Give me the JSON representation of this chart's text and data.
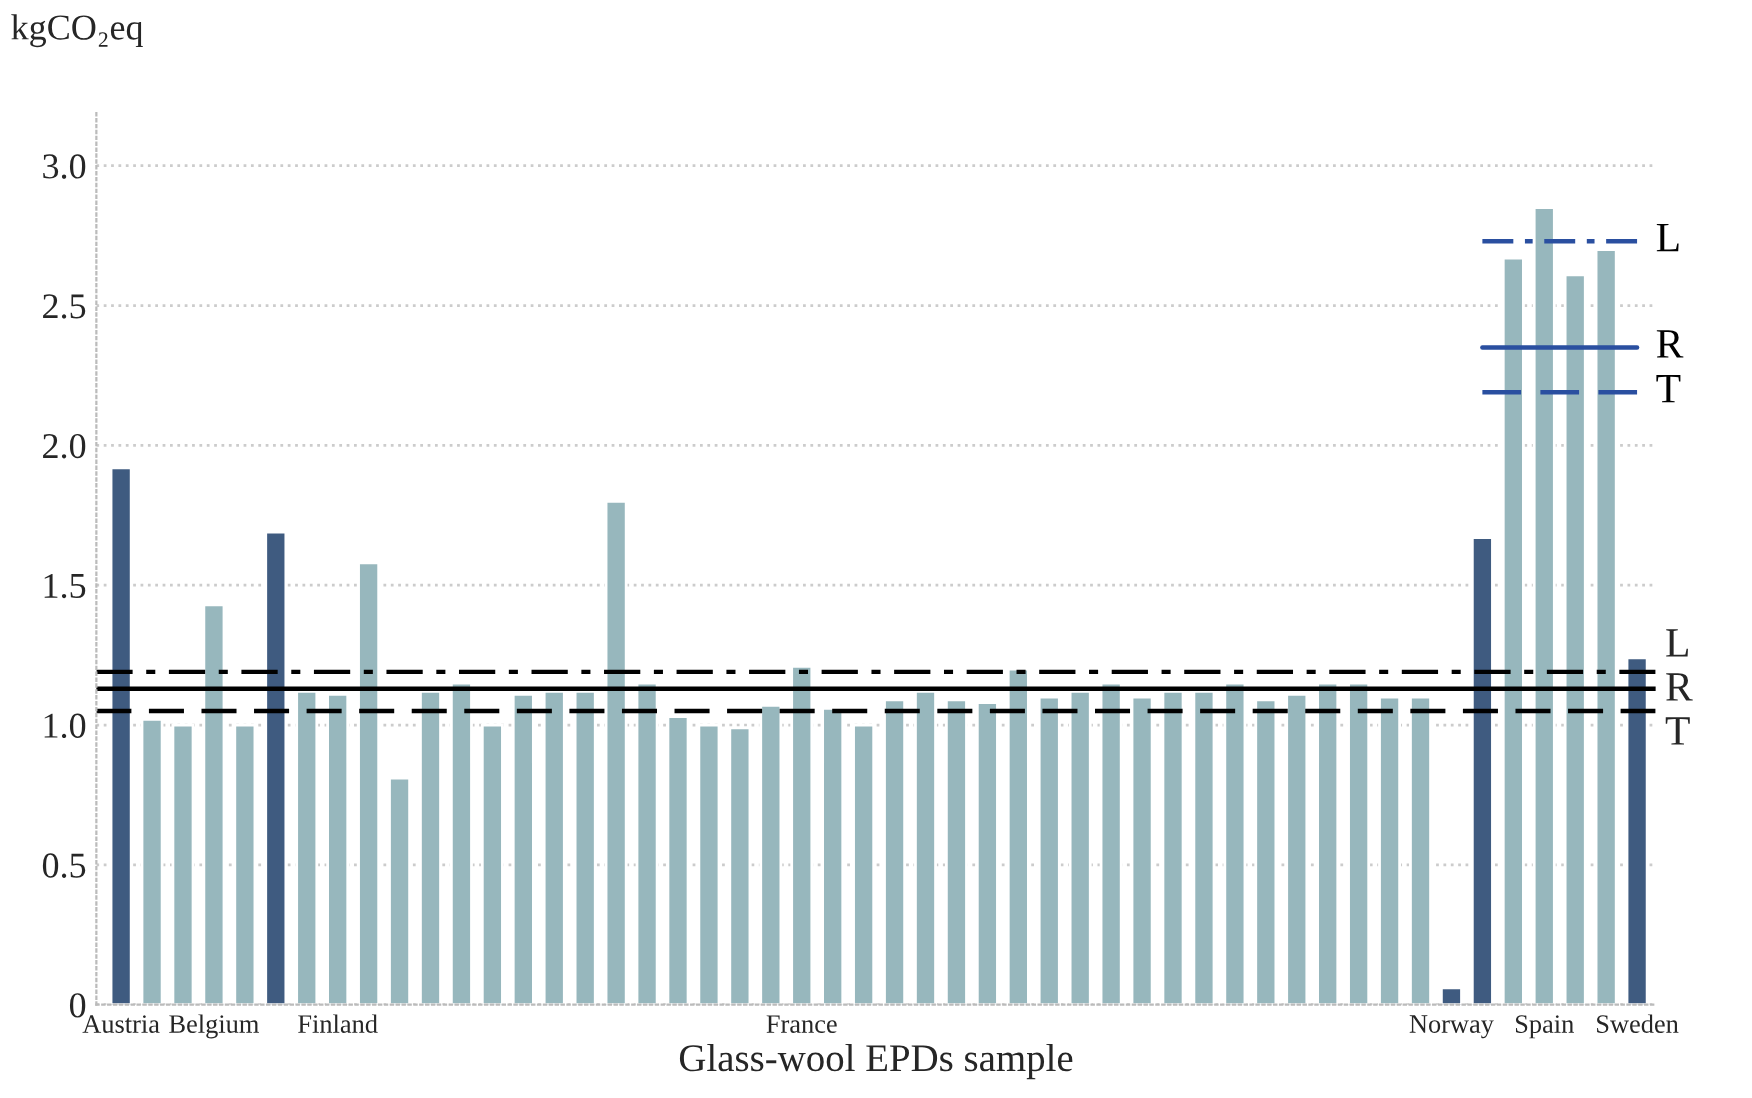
{
  "chart_data": {
    "type": "bar",
    "xlabel": "Glass-wool EPDs sample",
    "ylabel": "kgCO₂eq",
    "categories": [
      "Austria",
      null,
      null,
      "Belgium",
      null,
      null,
      null,
      "Finland",
      null,
      null,
      null,
      null,
      null,
      null,
      null,
      null,
      null,
      null,
      null,
      null,
      null,
      null,
      "France",
      null,
      null,
      null,
      null,
      null,
      null,
      null,
      null,
      null,
      null,
      null,
      null,
      null,
      null,
      null,
      null,
      null,
      null,
      null,
      null,
      "Norway",
      null,
      null,
      "Spain",
      null,
      null,
      "Sweden"
    ],
    "values": [
      1.92,
      1.02,
      1.0,
      1.43,
      1.0,
      1.69,
      1.12,
      1.11,
      1.58,
      0.81,
      1.12,
      1.15,
      1.0,
      1.11,
      1.12,
      1.12,
      1.8,
      1.15,
      1.03,
      1.0,
      0.99,
      1.07,
      1.21,
      1.06,
      1.0,
      1.09,
      1.12,
      1.09,
      1.08,
      1.2,
      1.1,
      1.12,
      1.15,
      1.1,
      1.12,
      1.12,
      1.15,
      1.09,
      1.11,
      1.15,
      1.15,
      1.1,
      1.1,
      0.06,
      1.67,
      2.67,
      2.85,
      2.61,
      2.7,
      1.24
    ],
    "colors": [
      "#3f5b80",
      "#97b7bd",
      "#97b7bd",
      "#97b7bd",
      "#97b7bd",
      "#3f5b80",
      "#97b7bd",
      "#97b7bd",
      "#97b7bd",
      "#97b7bd",
      "#97b7bd",
      "#97b7bd",
      "#97b7bd",
      "#97b7bd",
      "#97b7bd",
      "#97b7bd",
      "#97b7bd",
      "#97b7bd",
      "#97b7bd",
      "#97b7bd",
      "#97b7bd",
      "#97b7bd",
      "#97b7bd",
      "#97b7bd",
      "#97b7bd",
      "#97b7bd",
      "#97b7bd",
      "#97b7bd",
      "#97b7bd",
      "#97b7bd",
      "#97b7bd",
      "#97b7bd",
      "#97b7bd",
      "#97b7bd",
      "#97b7bd",
      "#97b7bd",
      "#97b7bd",
      "#97b7bd",
      "#97b7bd",
      "#97b7bd",
      "#97b7bd",
      "#97b7bd",
      "#97b7bd",
      "#3f5b80",
      "#3f5b80",
      "#97b7bd",
      "#97b7bd",
      "#97b7bd",
      "#97b7bd",
      "#3f5b80"
    ],
    "series": [
      {
        "type": "line",
        "name": "L",
        "color": "#2a4fa0",
        "line_style": "dashdot",
        "values": [
          null,
          null,
          null,
          null,
          null,
          null,
          null,
          null,
          null,
          null,
          null,
          null,
          null,
          null,
          null,
          null,
          null,
          null,
          null,
          null,
          null,
          null,
          null,
          null,
          null,
          null,
          null,
          null,
          null,
          null,
          null,
          null,
          null,
          null,
          null,
          null,
          null,
          null,
          null,
          null,
          null,
          null,
          null,
          null,
          2.73,
          2.73,
          2.73,
          2.73,
          2.73,
          2.73
        ]
      },
      {
        "type": "line",
        "name": "R",
        "color": "#2a4fa0",
        "line_style": "solid",
        "values": [
          null,
          null,
          null,
          null,
          null,
          null,
          null,
          null,
          null,
          null,
          null,
          null,
          null,
          null,
          null,
          null,
          null,
          null,
          null,
          null,
          null,
          null,
          null,
          null,
          null,
          null,
          null,
          null,
          null,
          null,
          null,
          null,
          null,
          null,
          null,
          null,
          null,
          null,
          null,
          null,
          null,
          null,
          null,
          null,
          2.35,
          2.35,
          2.35,
          2.35,
          2.35,
          2.35
        ]
      },
      {
        "type": "line",
        "name": "T",
        "color": "#2a4fa0",
        "line_style": "dashed",
        "values": [
          null,
          null,
          null,
          null,
          null,
          null,
          null,
          null,
          null,
          null,
          null,
          null,
          null,
          null,
          null,
          null,
          null,
          null,
          null,
          null,
          null,
          null,
          null,
          null,
          null,
          null,
          null,
          null,
          null,
          null,
          null,
          null,
          null,
          null,
          null,
          null,
          null,
          null,
          null,
          null,
          null,
          null,
          null,
          null,
          2.19,
          2.19,
          2.19,
          2.19,
          2.19,
          2.19
        ]
      }
    ],
    "ref_lines": [
      {
        "axis": "y",
        "value": 1.19,
        "label": "L",
        "color": "#000000",
        "line_style": "dashdot"
      },
      {
        "axis": "y",
        "value": 1.13,
        "label": "R",
        "color": "#000000",
        "line_style": "solid"
      },
      {
        "axis": "y",
        "value": 1.05,
        "label": "T",
        "color": "#000000",
        "line_style": "dashed"
      }
    ],
    "ylim": [
      0,
      3.2
    ],
    "yticks": [
      0,
      0.5,
      {
        "value": 1,
        "label": "1.0"
      },
      1.5,
      {
        "value": 2,
        "label": "2.0"
      },
      2.5,
      {
        "value": 3,
        "label": "3.0"
      }
    ],
    "grid": "y",
    "legend": false
  }
}
